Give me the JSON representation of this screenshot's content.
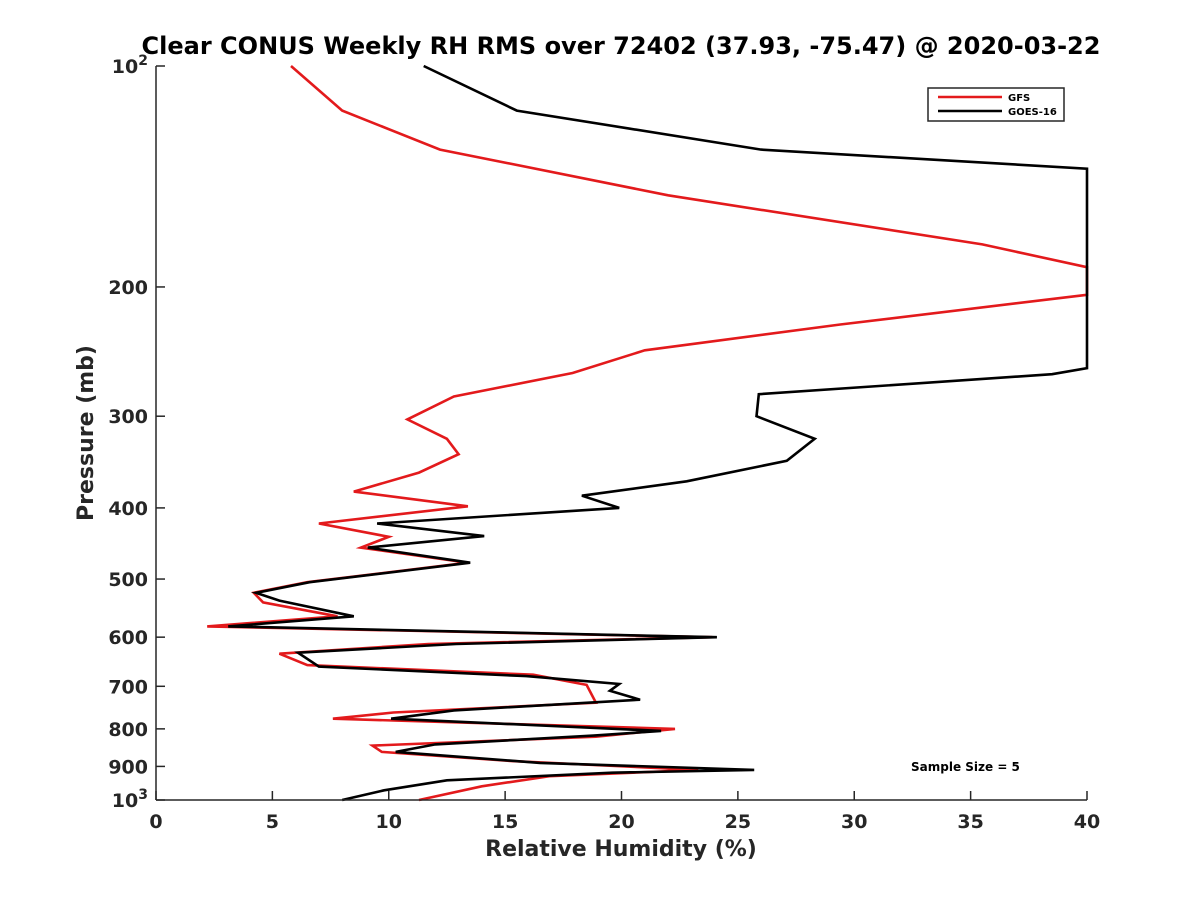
{
  "chart_data": {
    "type": "line",
    "title": "Clear CONUS Weekly RH RMS over 72402 (37.93, -75.47) @ 2020-03-22",
    "xlabel": "Relative Humidity (%)",
    "ylabel": "Pressure (mb)",
    "xlim": [
      0,
      40
    ],
    "ylim": [
      100,
      1000
    ],
    "yscale": "log",
    "yreversed": true,
    "xticks": [
      0,
      5,
      10,
      15,
      20,
      25,
      30,
      35,
      40
    ],
    "xtick_labels": [
      "0",
      "5",
      "10",
      "15",
      "20",
      "25",
      "30",
      "35",
      "40"
    ],
    "yticks": [
      {
        "value": 100,
        "base": "10",
        "exp": "2"
      },
      {
        "value": 200,
        "label": "200"
      },
      {
        "value": 300,
        "label": "300"
      },
      {
        "value": 400,
        "label": "400"
      },
      {
        "value": 500,
        "label": "500"
      },
      {
        "value": 600,
        "label": "600"
      },
      {
        "value": 700,
        "label": "700"
      },
      {
        "value": 800,
        "label": "800"
      },
      {
        "value": 900,
        "label": "900"
      },
      {
        "value": 1000,
        "base": "10",
        "exp": "3"
      }
    ],
    "legend_position": "top-right",
    "annotation": "Sample Size = 5",
    "series": [
      {
        "name": "GFS",
        "color": "#e31a1c",
        "points": [
          [
            5.8,
            100
          ],
          [
            8.0,
            115
          ],
          [
            12.2,
            130
          ],
          [
            22.0,
            150
          ],
          [
            35.5,
            175
          ],
          [
            40.0,
            188
          ],
          [
            40.0,
            205
          ],
          [
            29.4,
            225
          ],
          [
            21.0,
            244
          ],
          [
            17.9,
            262
          ],
          [
            12.8,
            282
          ],
          [
            10.8,
            303
          ],
          [
            12.5,
            322
          ],
          [
            13.0,
            338
          ],
          [
            11.3,
            358
          ],
          [
            8.5,
            380
          ],
          [
            13.4,
            398
          ],
          [
            7.0,
            420
          ],
          [
            10.0,
            438
          ],
          [
            8.8,
            453
          ],
          [
            13.4,
            475
          ],
          [
            6.5,
            505
          ],
          [
            4.2,
            522
          ],
          [
            4.6,
            538
          ],
          [
            7.8,
            562
          ],
          [
            2.2,
            580
          ],
          [
            23.9,
            600
          ],
          [
            11.7,
            613
          ],
          [
            5.3,
            632
          ],
          [
            6.5,
            655
          ],
          [
            16.2,
            675
          ],
          [
            18.5,
            697
          ],
          [
            18.9,
            737
          ],
          [
            10.2,
            760
          ],
          [
            7.6,
            775
          ],
          [
            22.3,
            800
          ],
          [
            18.9,
            820
          ],
          [
            9.3,
            843
          ],
          [
            9.7,
            860
          ],
          [
            15.3,
            885
          ],
          [
            23.3,
            910
          ],
          [
            16.9,
            928
          ],
          [
            14.0,
            958
          ],
          [
            11.3,
            1000
          ]
        ]
      },
      {
        "name": "GOES-16",
        "color": "#000000",
        "points": [
          [
            11.5,
            100
          ],
          [
            15.5,
            115
          ],
          [
            26.0,
            130
          ],
          [
            40.0,
            138
          ],
          [
            40.0,
            258
          ],
          [
            38.5,
            263
          ],
          [
            25.9,
            280
          ],
          [
            25.8,
            300
          ],
          [
            28.3,
            322
          ],
          [
            27.1,
            345
          ],
          [
            22.8,
            368
          ],
          [
            18.3,
            385
          ],
          [
            19.9,
            400
          ],
          [
            9.5,
            420
          ],
          [
            14.1,
            437
          ],
          [
            9.1,
            453
          ],
          [
            13.5,
            475
          ],
          [
            6.6,
            505
          ],
          [
            4.3,
            522
          ],
          [
            5.3,
            535
          ],
          [
            8.5,
            562
          ],
          [
            3.1,
            580
          ],
          [
            24.1,
            600
          ],
          [
            12.9,
            613
          ],
          [
            6.1,
            630
          ],
          [
            7.0,
            658
          ],
          [
            15.9,
            678
          ],
          [
            19.9,
            695
          ],
          [
            19.5,
            710
          ],
          [
            20.8,
            730
          ],
          [
            12.8,
            755
          ],
          [
            10.1,
            775
          ],
          [
            21.7,
            805
          ],
          [
            18.8,
            817
          ],
          [
            12.0,
            840
          ],
          [
            10.3,
            860
          ],
          [
            16.5,
            890
          ],
          [
            25.7,
            910
          ],
          [
            19.6,
            918
          ],
          [
            12.5,
            940
          ],
          [
            9.8,
            970
          ],
          [
            8.0,
            1000
          ]
        ]
      }
    ]
  }
}
